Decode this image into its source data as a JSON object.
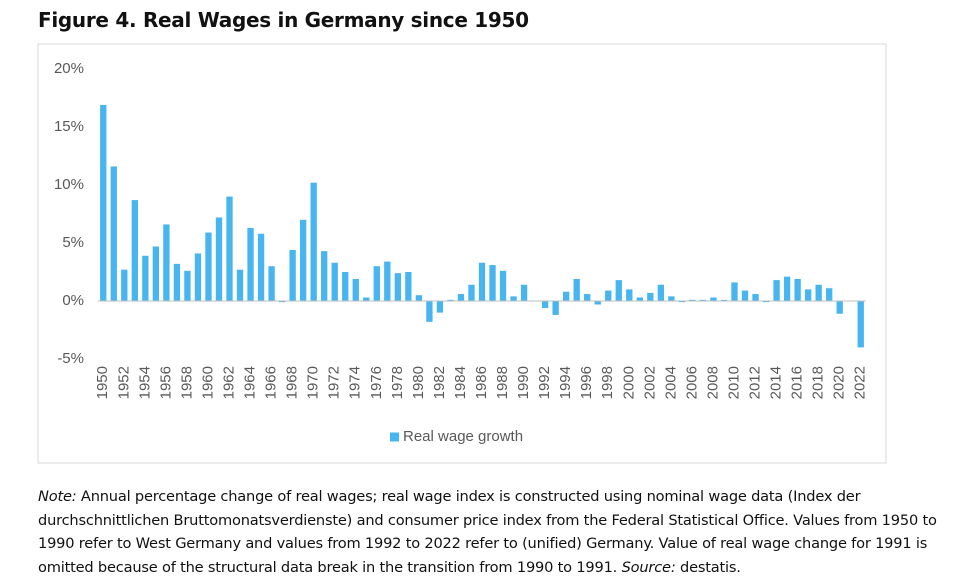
{
  "figure_title": "Figure 4. Real Wages in Germany since 1950",
  "note": {
    "label": "Note:",
    "text": "Annual percentage change of real wages; real wage index is constructed using nominal wage data (Index der durchschnittlichen Bruttomonatsverdienste) and consumer price index from the Federal Statistical Office. Values from 1950 to 1990 refer to West Germany and values from 1992 to 2022 refer to (unified) Germany. Value of real wage change for 1991 is omitted because of the structural data break in the transition from 1990 to 1991.",
    "source_label": "Source:",
    "source": "destatis."
  },
  "chart_data": {
    "type": "bar",
    "categories": [
      "1950",
      null,
      "1952",
      null,
      "1954",
      null,
      "1956",
      null,
      "1958",
      null,
      "1960",
      null,
      "1962",
      null,
      "1964",
      null,
      "1966",
      null,
      "1968",
      null,
      "1970",
      null,
      "1972",
      null,
      "1974",
      null,
      "1976",
      null,
      "1978",
      null,
      "1980",
      null,
      "1982",
      null,
      "1984",
      null,
      "1986",
      null,
      "1988",
      null,
      "1990",
      null,
      "1992",
      null,
      "1994",
      null,
      "1996",
      null,
      "1998",
      null,
      "2000",
      null,
      "2002",
      null,
      "2004",
      null,
      "2006",
      null,
      "2008",
      null,
      "2010",
      null,
      "2012",
      null,
      "2014",
      null,
      "2016",
      null,
      "2018",
      null,
      "2020",
      null,
      "2022"
    ],
    "series": [
      {
        "name": "Real wage growth",
        "color": "#47b5ef",
        "values": [
          16.9,
          11.6,
          2.7,
          8.7,
          3.9,
          4.7,
          6.6,
          3.2,
          2.6,
          4.1,
          5.9,
          7.2,
          9.0,
          2.7,
          6.3,
          5.8,
          3.0,
          -0.1,
          4.4,
          7.0,
          10.2,
          4.3,
          3.3,
          2.5,
          1.9,
          0.3,
          3.0,
          3.4,
          2.4,
          2.5,
          0.5,
          -1.8,
          -1.0,
          0.1,
          0.6,
          1.4,
          3.3,
          3.1,
          2.6,
          0.4,
          1.4,
          null,
          -0.6,
          -1.2,
          0.8,
          1.9,
          0.6,
          -0.3,
          0.9,
          1.8,
          1.0,
          0.3,
          0.7,
          1.4,
          0.4,
          -0.1,
          0.1,
          0.1,
          0.3,
          0.1,
          1.6,
          0.9,
          0.6,
          -0.1,
          1.8,
          2.1,
          1.9,
          1.0,
          1.4,
          1.1,
          -1.1,
          0.0,
          -4.0
        ]
      }
    ],
    "ylim": [
      -5,
      20
    ],
    "yticks": [
      {
        "value": -5,
        "label": "-5%"
      },
      {
        "value": 0,
        "label": "0%"
      },
      {
        "value": 5,
        "label": "5%"
      },
      {
        "value": 10,
        "label": "10%"
      },
      {
        "value": 15,
        "label": "15%"
      },
      {
        "value": 20,
        "label": "20%"
      }
    ],
    "grid": false,
    "legend": "bottom"
  }
}
